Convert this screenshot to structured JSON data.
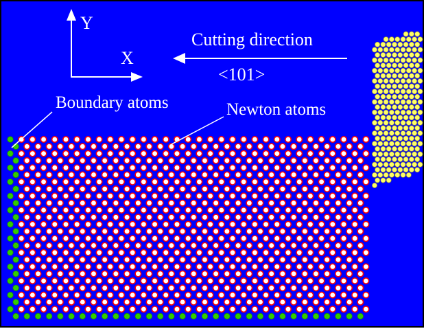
{
  "diagram": {
    "background_color": "#0000ff",
    "border_color": "#000000",
    "axes": {
      "y_label": "Y",
      "x_label": "X"
    },
    "cutting": {
      "label": "Cutting direction",
      "direction_label": "<101>"
    },
    "labels": {
      "boundary": "Boundary atoms",
      "newton": "Newton atoms"
    },
    "colors": {
      "newton_atom_fill": "#ffffff",
      "newton_atom_stroke": "#ff0000",
      "boundary_atom_fill": "#33cc00",
      "tool_atom_fill": "#ffff66",
      "tool_atom_stroke": "#888844",
      "text": "#ffffff"
    }
  }
}
